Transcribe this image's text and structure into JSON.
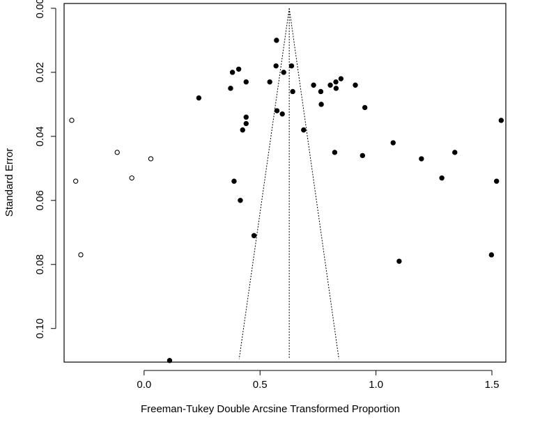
{
  "chart_data": {
    "type": "scatter",
    "title": "",
    "xlabel": "Freeman-Tukey Double Arcsine Transformed Proportion",
    "ylabel": "Standard Error",
    "xlim": [
      -0.345,
      1.56
    ],
    "ylim": [
      0.1105,
      -0.0015
    ],
    "y_reversed": true,
    "x_ticks": [
      0.0,
      0.5,
      1.0,
      1.5
    ],
    "x_tick_labels": [
      "0.0",
      "0.5",
      "1.0",
      "1.5"
    ],
    "y_ticks": [
      0.0,
      0.02,
      0.04,
      0.06,
      0.08,
      0.1
    ],
    "y_tick_labels": [
      "0.00",
      "0.02",
      "0.04",
      "0.06",
      "0.08",
      "0.10"
    ],
    "grid": false,
    "legend": "none",
    "funnel": {
      "center": 0.626,
      "apex_se": 0.0,
      "base_se": 0.1095,
      "base_left": 0.41,
      "base_right": 0.84,
      "style": "dotted"
    },
    "series": [
      {
        "marker": "filled-circle",
        "color": "#000000",
        "points": [
          [
            0.571,
            0.01
          ],
          [
            0.636,
            0.018
          ],
          [
            0.569,
            0.018
          ],
          [
            0.381,
            0.02
          ],
          [
            0.408,
            0.019
          ],
          [
            0.602,
            0.02
          ],
          [
            0.849,
            0.022
          ],
          [
            0.44,
            0.023
          ],
          [
            0.542,
            0.023
          ],
          [
            0.827,
            0.023
          ],
          [
            0.731,
            0.024
          ],
          [
            0.803,
            0.024
          ],
          [
            0.911,
            0.024
          ],
          [
            0.373,
            0.025
          ],
          [
            0.762,
            0.026
          ],
          [
            0.828,
            0.025
          ],
          [
            0.641,
            0.026
          ],
          [
            0.236,
            0.028
          ],
          [
            0.764,
            0.03
          ],
          [
            0.952,
            0.031
          ],
          [
            0.573,
            0.032
          ],
          [
            0.596,
            0.033
          ],
          [
            0.44,
            0.034
          ],
          [
            0.44,
            0.036
          ],
          [
            0.425,
            0.038
          ],
          [
            0.688,
            0.038
          ],
          [
            1.54,
            0.035
          ],
          [
            1.074,
            0.042
          ],
          [
            0.822,
            0.045
          ],
          [
            0.942,
            0.046
          ],
          [
            1.34,
            0.045
          ],
          [
            1.196,
            0.047
          ],
          [
            0.388,
            0.054
          ],
          [
            1.284,
            0.053
          ],
          [
            1.52,
            0.054
          ],
          [
            0.415,
            0.06
          ],
          [
            0.474,
            0.071
          ],
          [
            1.1,
            0.079
          ],
          [
            1.498,
            0.077
          ],
          [
            0.11,
            0.11
          ]
        ]
      },
      {
        "marker": "open-circle",
        "color": "#000000",
        "points": [
          [
            -0.312,
            0.035
          ],
          [
            -0.116,
            0.045
          ],
          [
            0.029,
            0.047
          ],
          [
            -0.295,
            0.054
          ],
          [
            -0.053,
            0.053
          ],
          [
            -0.273,
            0.077
          ]
        ]
      }
    ]
  }
}
